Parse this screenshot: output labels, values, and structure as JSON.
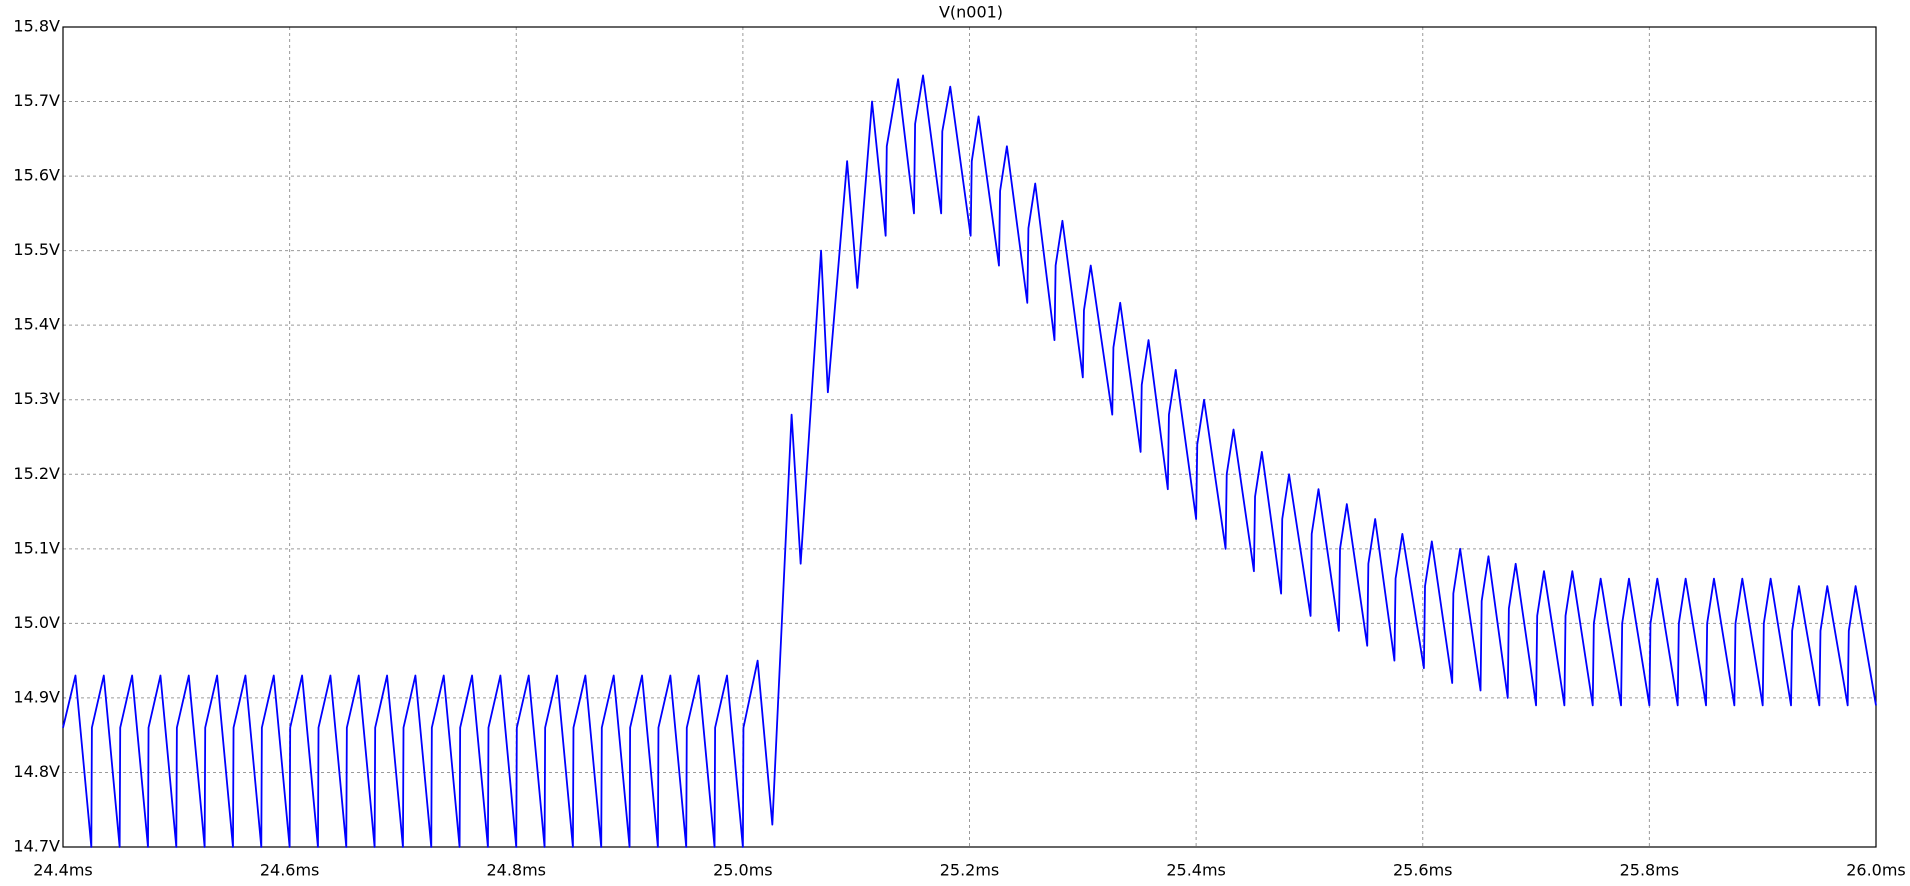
{
  "chart_data": {
    "type": "line",
    "series": [
      {
        "name": "V(n001)",
        "color": "#0000ff",
        "values": [
          14.86,
          14.93,
          14.7,
          14.86,
          14.93,
          14.7,
          14.86,
          14.93,
          14.7,
          14.86,
          14.93,
          14.7,
          14.86,
          14.93,
          14.7,
          14.86,
          14.93,
          14.7,
          14.86,
          14.93,
          14.7,
          14.86,
          14.93,
          14.7,
          14.86,
          14.93,
          14.7,
          14.86,
          14.93,
          14.7,
          14.86,
          14.93,
          14.7,
          14.86,
          14.93,
          14.7,
          14.86,
          14.93,
          14.7,
          14.86,
          14.93,
          14.7,
          14.86,
          14.93,
          14.7,
          14.86,
          14.93,
          14.7,
          14.86,
          14.93,
          14.7,
          14.86,
          14.93,
          14.7,
          14.86,
          14.93,
          14.7,
          14.86,
          14.93,
          14.7,
          14.86,
          14.93,
          14.7,
          14.86,
          14.93,
          14.7,
          14.86,
          14.93,
          14.7,
          14.86,
          14.93,
          14.7,
          14.86,
          14.95,
          14.73,
          15.28,
          15.08,
          15.5,
          15.31,
          15.62,
          15.45,
          15.7,
          15.52,
          15.64,
          15.73,
          15.55,
          15.67,
          15.735,
          15.55,
          15.66,
          15.72,
          15.52,
          15.62,
          15.68,
          15.48,
          15.58,
          15.64,
          15.43,
          15.53,
          15.59,
          15.38,
          15.48,
          15.54,
          15.33,
          15.42,
          15.48,
          15.28,
          15.37,
          15.43,
          15.23,
          15.32,
          15.38,
          15.18,
          15.28,
          15.34,
          15.14,
          15.24,
          15.3,
          15.1,
          15.2,
          15.26,
          15.07,
          15.17,
          15.23,
          15.04,
          15.14,
          15.2,
          15.01,
          15.12,
          15.18,
          14.99,
          15.1,
          15.16,
          14.97,
          15.08,
          15.14,
          14.95,
          15.06,
          15.12,
          14.94,
          15.05,
          15.11,
          14.92,
          15.04,
          15.1,
          14.91,
          15.03,
          15.09,
          14.9,
          15.02,
          15.08,
          14.89,
          15.01,
          15.07,
          14.89,
          15.01,
          15.07,
          14.89,
          15,
          15.06,
          14.89,
          15,
          15.06,
          14.89,
          15,
          15.06,
          14.89,
          15,
          15.06,
          14.89,
          15,
          15.06,
          14.89,
          15,
          15.06,
          14.89,
          15,
          15.06,
          14.89,
          14.99,
          15.05,
          14.89,
          14.99,
          15.05,
          14.89,
          14.99,
          15.05,
          14.89
        ]
      }
    ],
    "x": [
      24.4,
      24.411,
      24.425,
      24.4255,
      24.436,
      24.45,
      24.4505,
      24.461,
      24.475,
      24.4755,
      24.486,
      24.5,
      24.5005,
      24.511,
      24.525,
      24.5255,
      24.536,
      24.55,
      24.5505,
      24.561,
      24.575,
      24.5755,
      24.586,
      24.6,
      24.6005,
      24.611,
      24.625,
      24.6255,
      24.636,
      24.65,
      24.6505,
      24.661,
      24.675,
      24.6755,
      24.686,
      24.7,
      24.7005,
      24.711,
      24.725,
      24.7255,
      24.736,
      24.75,
      24.7505,
      24.761,
      24.775,
      24.7755,
      24.786,
      24.8,
      24.8005,
      24.811,
      24.825,
      24.8255,
      24.836,
      24.85,
      24.8505,
      24.861,
      24.875,
      24.8755,
      24.886,
      24.9,
      24.9005,
      24.911,
      24.925,
      24.9255,
      24.936,
      24.95,
      24.9505,
      24.961,
      24.975,
      24.9755,
      24.986,
      25,
      25.0005,
      25.013,
      25.026,
      25.043,
      25.051,
      25.069,
      25.075,
      25.092,
      25.101,
      25.114,
      25.126,
      25.127,
      25.137,
      25.151,
      25.152,
      25.159,
      25.175,
      25.176,
      25.183,
      25.201,
      25.202,
      25.208,
      25.226,
      25.227,
      25.233,
      25.251,
      25.252,
      25.258,
      25.275,
      25.276,
      25.282,
      25.3,
      25.301,
      25.307,
      25.326,
      25.327,
      25.333,
      25.351,
      25.352,
      25.358,
      25.375,
      25.376,
      25.382,
      25.4,
      25.401,
      25.407,
      25.426,
      25.427,
      25.433,
      25.451,
      25.452,
      25.458,
      25.475,
      25.476,
      25.482,
      25.501,
      25.502,
      25.508,
      25.526,
      25.527,
      25.533,
      25.551,
      25.552,
      25.558,
      25.575,
      25.576,
      25.582,
      25.601,
      25.602,
      25.608,
      25.626,
      25.627,
      25.633,
      25.651,
      25.652,
      25.658,
      25.675,
      25.676,
      25.682,
      25.7,
      25.701,
      25.707,
      25.725,
      25.726,
      25.732,
      25.75,
      25.751,
      25.757,
      25.775,
      25.776,
      25.782,
      25.8,
      25.801,
      25.807,
      25.825,
      25.826,
      25.832,
      25.85,
      25.851,
      25.857,
      25.875,
      25.876,
      25.882,
      25.9,
      25.901,
      25.907,
      25.925,
      25.926,
      25.932,
      25.95,
      25.951,
      25.957,
      25.975,
      25.976,
      25.982,
      26
    ],
    "xlim": [
      24.4,
      26.0
    ],
    "xticks": [
      {
        "value": 24.4,
        "label": "24.4ms"
      },
      {
        "value": 24.6,
        "label": "24.6ms"
      },
      {
        "value": 24.8,
        "label": "24.8ms"
      },
      {
        "value": 25.0,
        "label": "25.0ms"
      },
      {
        "value": 25.2,
        "label": "25.2ms"
      },
      {
        "value": 25.4,
        "label": "25.4ms"
      },
      {
        "value": 25.6,
        "label": "25.6ms"
      },
      {
        "value": 25.8,
        "label": "25.8ms"
      },
      {
        "value": 26.0,
        "label": "26.0ms"
      }
    ],
    "ylim": [
      14.7,
      15.8
    ],
    "yticks": [
      {
        "value": 14.7,
        "label": "14.7V"
      },
      {
        "value": 14.8,
        "label": "14.8V"
      },
      {
        "value": 14.9,
        "label": "14.9V"
      },
      {
        "value": 15.0,
        "label": "15.0V"
      },
      {
        "value": 15.1,
        "label": "15.1V"
      },
      {
        "value": 15.2,
        "label": "15.2V"
      },
      {
        "value": 15.3,
        "label": "15.3V"
      },
      {
        "value": 15.4,
        "label": "15.4V"
      },
      {
        "value": 15.5,
        "label": "15.5V"
      },
      {
        "value": 15.6,
        "label": "15.6V"
      },
      {
        "value": 15.7,
        "label": "15.7V"
      },
      {
        "value": 15.8,
        "label": "15.8V"
      }
    ],
    "grid": true
  }
}
